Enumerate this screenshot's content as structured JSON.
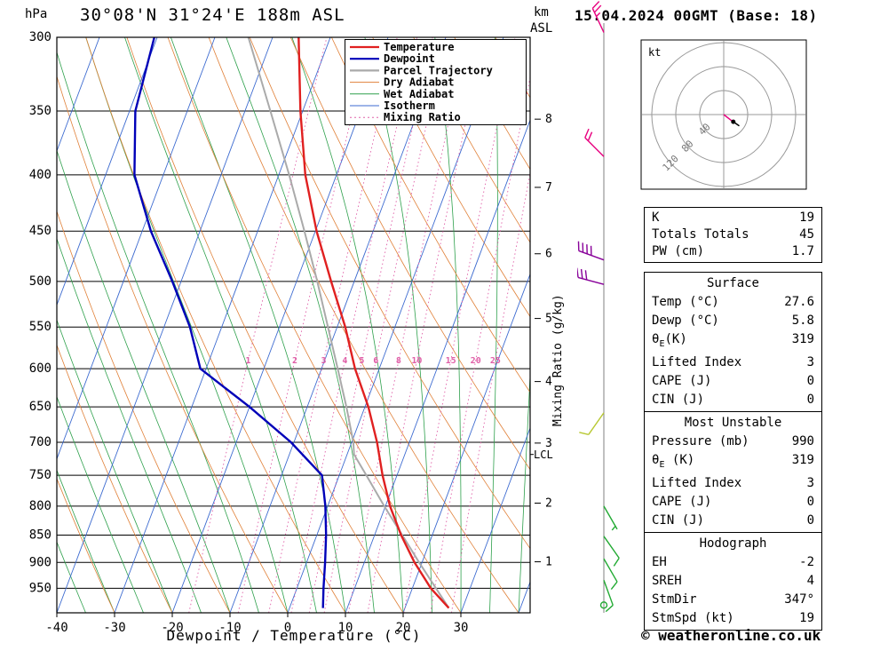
{
  "header": {
    "title": "30°08'N 31°24'E 188m ASL",
    "hpa_label": "hPa",
    "km_label": "km",
    "asl_label": "ASL",
    "date_label": "15.04.2024 00GMT (Base: 18)"
  },
  "axes": {
    "pressure_ticks": [
      300,
      350,
      400,
      450,
      500,
      550,
      600,
      650,
      700,
      750,
      800,
      850,
      900,
      950
    ],
    "temp_ticks": [
      -40,
      -30,
      -20,
      -10,
      0,
      10,
      20,
      30
    ],
    "km_ticks": [
      1,
      2,
      3,
      4,
      5,
      6,
      7,
      8
    ],
    "xlabel": "Dewpoint / Temperature (°C)",
    "mixing_ratio_label": "Mixing Ratio (g/kg)",
    "lcl_label": "LCL"
  },
  "legend": [
    {
      "label": "Temperature",
      "color": "#e02020",
      "width": 2.2,
      "dash": ""
    },
    {
      "label": "Dewpoint",
      "color": "#0000b8",
      "width": 2.2,
      "dash": ""
    },
    {
      "label": "Parcel Trajectory",
      "color": "#aaaaaa",
      "width": 2.2,
      "dash": ""
    },
    {
      "label": "Dry Adiabat",
      "color": "#e08038",
      "width": 1,
      "dash": ""
    },
    {
      "label": "Wet Adiabat",
      "color": "#2ea04c",
      "width": 1,
      "dash": ""
    },
    {
      "label": "Isotherm",
      "color": "#3c6ad0",
      "width": 1,
      "dash": ""
    },
    {
      "label": "Mixing Ratio",
      "color": "#e060a8",
      "width": 1,
      "dash": "2 3"
    }
  ],
  "chart_data": {
    "type": "line",
    "subtype": "skew-t-log-p",
    "pressure_axis_hpa": [
      300,
      1000
    ],
    "temp_axis_c": [
      -40,
      40
    ],
    "colors": {
      "temperature": "#e02020",
      "dewpoint": "#0000b8",
      "parcel": "#aaaaaa",
      "dry_adiabat": "#e08038",
      "wet_adiabat": "#2ea04c",
      "isotherm": "#3c6ad0",
      "mixing_ratio": "#e060a8"
    },
    "background": {
      "isotherm_step": 10,
      "dry_adiabat_step": 10,
      "wet_adiabat_step": 5,
      "mixing_ratios": [
        1,
        2,
        3,
        4,
        5,
        6,
        8,
        10,
        15,
        20,
        25
      ]
    },
    "temperature_profile": {
      "pressure_hpa": [
        990,
        950,
        900,
        850,
        800,
        750,
        700,
        650,
        600,
        550,
        500,
        450,
        400,
        350,
        300
      ],
      "temp_c": [
        27.6,
        23.2,
        18.7,
        14.6,
        10.8,
        7.5,
        4.4,
        0.6,
        -4.2,
        -8.6,
        -14.0,
        -19.8,
        -25.4,
        -30.4,
        -35.5
      ]
    },
    "dewpoint_profile": {
      "pressure_hpa": [
        990,
        950,
        900,
        850,
        800,
        750,
        700,
        650,
        600,
        550,
        500,
        450,
        400,
        350,
        300
      ],
      "temp_c": [
        5.8,
        4.6,
        3.2,
        1.6,
        -0.4,
        -3.0,
        -10.5,
        -20.0,
        -31.0,
        -35.5,
        -41.5,
        -48.5,
        -55.0,
        -59.0,
        -60.5
      ]
    },
    "parcel_profile": {
      "pressure_hpa": [
        990,
        950,
        900,
        850,
        800,
        750,
        718,
        700,
        650,
        600,
        550,
        500,
        450,
        400,
        350,
        300
      ],
      "temp_c": [
        27.6,
        24.1,
        19.5,
        14.8,
        9.8,
        4.7,
        1.2,
        0.3,
        -3.2,
        -7.2,
        -11.6,
        -16.4,
        -21.9,
        -28.2,
        -35.6,
        -44.2
      ]
    },
    "lcl_pressure_hpa": 718
  },
  "wind_barbs": [
    {
      "p": 297,
      "dir": 335,
      "spd": 25,
      "color": "#e8007f"
    },
    {
      "p": 385,
      "dir": 315,
      "spd": 20,
      "color": "#e8007f"
    },
    {
      "p": 478,
      "dir": 290,
      "spd": 40,
      "color": "#880099"
    },
    {
      "p": 503,
      "dir": 285,
      "spd": 30,
      "color": "#880099"
    },
    {
      "p": 658,
      "dir": 215,
      "spd": 10,
      "color": "#b8c832"
    },
    {
      "p": 800,
      "dir": 150,
      "spd": 5,
      "color": "#22aa33"
    },
    {
      "p": 852,
      "dir": 145,
      "spd": 10,
      "color": "#22aa33"
    },
    {
      "p": 893,
      "dir": 150,
      "spd": 10,
      "color": "#22aa33"
    },
    {
      "p": 934,
      "dir": 160,
      "spd": 10,
      "color": "#22aa33"
    },
    {
      "p": 984,
      "dir": 0,
      "spd": 0,
      "color": "#22aa33"
    }
  ],
  "hodograph": {
    "kt_label": "kt",
    "rings_kt": [
      40,
      80,
      120
    ],
    "ring_labels": [
      "40",
      "80",
      "120"
    ],
    "trace_kt": [
      [
        0,
        0
      ],
      [
        13,
        -10
      ],
      [
        26,
        -19
      ]
    ],
    "dot_kt": [
      16,
      -12
    ]
  },
  "stats": {
    "indices": [
      [
        "K",
        "19"
      ],
      [
        "Totals Totals",
        "45"
      ],
      [
        "PW (cm)",
        "1.7"
      ]
    ],
    "surface": {
      "title": "Surface",
      "rows": [
        [
          "Temp (°C)",
          "27.6"
        ],
        [
          "Dewp (°C)",
          "5.8"
        ],
        [
          "θE(K)",
          "319"
        ],
        [
          "Lifted Index",
          "3"
        ],
        [
          "CAPE (J)",
          "0"
        ],
        [
          "CIN (J)",
          "0"
        ]
      ]
    },
    "most_unstable": {
      "title": "Most Unstable",
      "rows": [
        [
          "Pressure (mb)",
          "990"
        ],
        [
          "θE (K)",
          "319"
        ],
        [
          "Lifted Index",
          "3"
        ],
        [
          "CAPE (J)",
          "0"
        ],
        [
          "CIN (J)",
          "0"
        ]
      ]
    },
    "hodograph_box": {
      "title": "Hodograph",
      "rows": [
        [
          "EH",
          "-2"
        ],
        [
          "SREH",
          "4"
        ],
        [
          "StmDir",
          "347°"
        ],
        [
          "StmSpd (kt)",
          "19"
        ]
      ]
    }
  },
  "copyright": "© weatheronline.co.uk"
}
